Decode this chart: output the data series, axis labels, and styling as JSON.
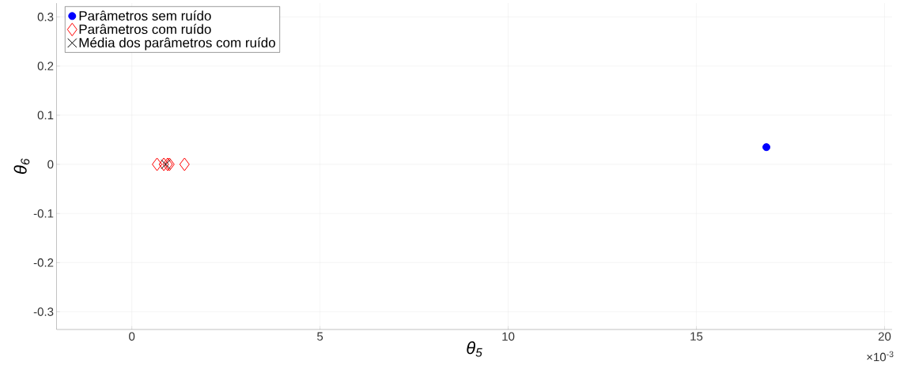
{
  "chart_data": {
    "type": "scatter",
    "xlabel": "θ$_{5}$",
    "ylabel": "θ$_{6}$",
    "xlim": [
      -2,
      20.2
    ],
    "ylim": [
      -0.336,
      0.328
    ],
    "xticks": [
      0,
      5,
      10,
      15,
      20
    ],
    "yticks": [
      -0.3,
      -0.2,
      -0.1,
      0,
      0.1,
      0.2,
      0.3
    ],
    "grid": true,
    "legend": "top left",
    "annotations": [
      "×10$^{-3}$"
    ],
    "series": [
      {
        "name": "Parâmetros sem ruído",
        "color": "#0000ff",
        "marker": "circle",
        "x": [
          16.86
        ],
        "values": [
          0.035
        ]
      },
      {
        "name": "Parâmetros com ruído",
        "color": "#ff0000",
        "marker": "diamond",
        "x": [
          0.67,
          0.85,
          0.95,
          1.0,
          1.4
        ],
        "values": [
          0,
          0,
          0,
          0,
          0
        ]
      },
      {
        "name": "Média dos parâmetros com ruído",
        "color": "#000000",
        "marker": "cross",
        "x": [
          0.9
        ],
        "values": [
          0
        ]
      }
    ]
  }
}
